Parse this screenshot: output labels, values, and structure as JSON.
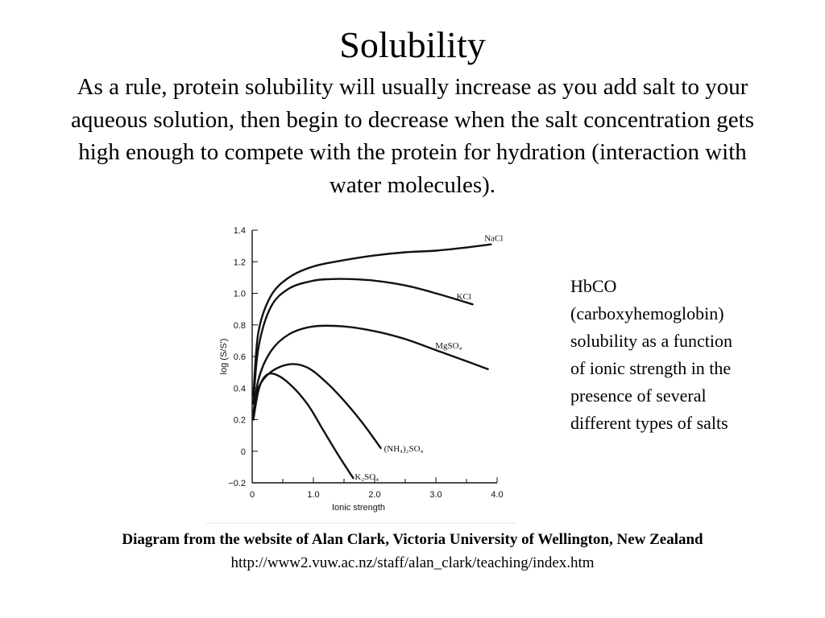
{
  "slide": {
    "title": "Solubility",
    "intro": "As a rule, protein solubility will usually increase as you add salt to your aqueous solution, then begin to decrease when the salt concentration gets high enough to compete with the protein for hydration (interaction with water molecules).",
    "side_note_lines": [
      "HbCO",
      "(carboxyhemoglobin)",
      "solubility as a function",
      "of ionic strength in the",
      "presence of  several",
      "different types of salts"
    ],
    "credit": "Diagram from the website of Alan Clark, Victoria University of Wellington, New Zealand",
    "url": "http://www2.vuw.ac.nz/staff/alan_clark/teaching/index.htm"
  },
  "chart_data": {
    "type": "line",
    "xlabel": "Ionic strength",
    "ylabel": "log (S/S')",
    "xlim": [
      0,
      4.0
    ],
    "ylim": [
      -0.2,
      1.4
    ],
    "x_ticks": [
      {
        "value": 0,
        "label": "0"
      },
      {
        "value": 1.0,
        "label": "1.0"
      },
      {
        "value": 2.0,
        "label": "2.0"
      },
      {
        "value": 3.0,
        "label": "3.0"
      },
      {
        "value": 4.0,
        "label": "4.0"
      }
    ],
    "y_ticks": [
      {
        "value": -0.2,
        "label": "−0.2"
      },
      {
        "value": 0,
        "label": "0"
      },
      {
        "value": 0.2,
        "label": "0.2"
      },
      {
        "value": 0.4,
        "label": "0.4"
      },
      {
        "value": 0.6,
        "label": "0.6"
      },
      {
        "value": 0.8,
        "label": "0.8"
      },
      {
        "value": 1.0,
        "label": "1.0"
      },
      {
        "value": 1.2,
        "label": "1.2"
      },
      {
        "value": 1.4,
        "label": "1.4"
      }
    ],
    "grid": false,
    "series": [
      {
        "name": "NaCl",
        "x": [
          0.02,
          0.1,
          0.3,
          0.6,
          1.0,
          1.5,
          2.0,
          2.5,
          3.0,
          3.5,
          3.9
        ],
        "y": [
          0.35,
          0.75,
          0.98,
          1.1,
          1.17,
          1.21,
          1.24,
          1.26,
          1.27,
          1.29,
          1.31
        ]
      },
      {
        "name": "KCl",
        "x": [
          0.02,
          0.1,
          0.3,
          0.6,
          1.0,
          1.3,
          1.6,
          2.0,
          2.5,
          3.0,
          3.6
        ],
        "y": [
          0.3,
          0.65,
          0.91,
          1.03,
          1.08,
          1.09,
          1.09,
          1.08,
          1.05,
          1.0,
          0.93
        ]
      },
      {
        "name": "MgSO₄",
        "x": [
          0.02,
          0.1,
          0.3,
          0.6,
          1.0,
          1.5,
          2.0,
          2.5,
          3.0,
          3.5,
          3.85
        ],
        "y": [
          0.22,
          0.45,
          0.63,
          0.74,
          0.79,
          0.79,
          0.76,
          0.71,
          0.64,
          0.57,
          0.52
        ]
      },
      {
        "name": "(NH₄)₂SO₄",
        "x": [
          0.02,
          0.1,
          0.3,
          0.6,
          0.9,
          1.2,
          1.5,
          1.8,
          2.1
        ],
        "y": [
          0.25,
          0.4,
          0.5,
          0.55,
          0.53,
          0.44,
          0.32,
          0.18,
          0.02
        ]
      },
      {
        "name": "K₂SO₄",
        "x": [
          0.02,
          0.1,
          0.2,
          0.35,
          0.6,
          0.9,
          1.15,
          1.4,
          1.65
        ],
        "y": [
          0.2,
          0.38,
          0.47,
          0.49,
          0.43,
          0.3,
          0.14,
          -0.02,
          -0.17
        ]
      }
    ]
  }
}
